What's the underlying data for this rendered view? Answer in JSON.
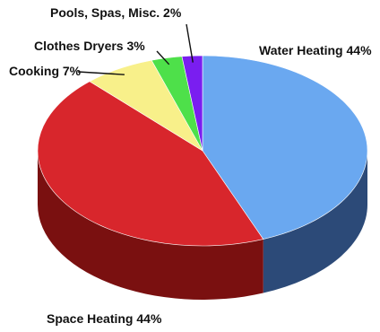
{
  "chart_data": {
    "type": "pie",
    "style": "3d",
    "start": "top",
    "direction": "clockwise",
    "slices": [
      {
        "label": "Water Heating 44%",
        "name": "Water Heating",
        "value": 44,
        "color": "#6aa8f0",
        "side_color": "#2c4a78"
      },
      {
        "label": "Space Heating 44%",
        "name": "Space Heating",
        "value": 44,
        "color": "#d8262c",
        "side_color": "#7a1010"
      },
      {
        "label": "Cooking 7%",
        "name": "Cooking",
        "value": 7,
        "color": "#f8f08a",
        "side_color": "#a89a3a"
      },
      {
        "label": "Clothes Dryers 3%",
        "name": "Clothes Dryers",
        "value": 3,
        "color": "#4ee04a",
        "side_color": "#227a20"
      },
      {
        "label": "Pools, Spas, Misc. 2%",
        "name": "Pools, Spas, Misc.",
        "value": 2,
        "color": "#7a1ef0",
        "side_color": "#3a0a80"
      }
    ]
  }
}
